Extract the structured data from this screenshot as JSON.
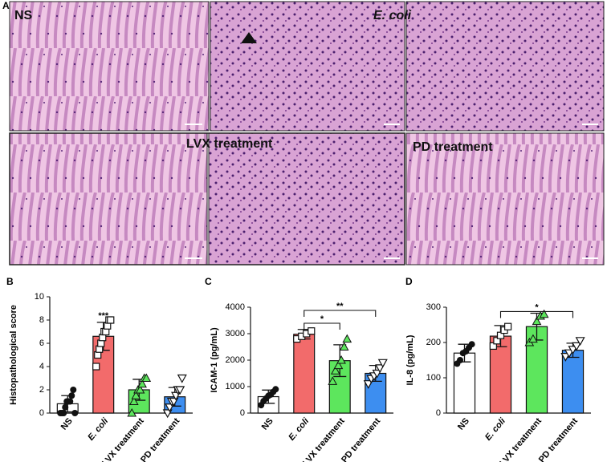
{
  "histology": {
    "label": "A",
    "panels": [
      "NS",
      "E. coli",
      "LVX treatment",
      "PD treatment"
    ]
  },
  "chart_data": [
    {
      "type": "bar",
      "panel": "B",
      "ylabel": "Histopathological score",
      "categories": [
        "NS",
        "E. coli",
        "LVX treatment",
        "PD treatment"
      ],
      "values": [
        0.8,
        6.6,
        2.0,
        1.4
      ],
      "errors": [
        0.7,
        1.2,
        0.9,
        0.8
      ],
      "points": [
        [
          0,
          0,
          0,
          0.5,
          1,
          1,
          1,
          1.5,
          2,
          0
        ],
        [
          4,
          5,
          5.5,
          6,
          6.5,
          7,
          7,
          7.5,
          8,
          8
        ],
        [
          0,
          1,
          1.5,
          2,
          2,
          2.5,
          3,
          3
        ],
        [
          0,
          0.5,
          1,
          1,
          1.5,
          2,
          2,
          3
        ]
      ],
      "colors": [
        "#ffffff",
        "#f26b6b",
        "#5de65d",
        "#3d8ef0"
      ],
      "markers": [
        "circle",
        "square",
        "triangle",
        "triangle-down"
      ],
      "ylim": [
        0,
        10
      ],
      "yticks": [
        0,
        2,
        4,
        6,
        8,
        10
      ],
      "annotations": [
        {
          "text": "***",
          "from": 1,
          "to": 1
        }
      ]
    },
    {
      "type": "bar",
      "panel": "C",
      "ylabel": "ICAM-1 (pg/mL)",
      "categories": [
        "NS",
        "E. coli",
        "LVX treatment",
        "PD treatment"
      ],
      "values": [
        620,
        2980,
        1980,
        1500
      ],
      "errors": [
        250,
        180,
        600,
        300
      ],
      "points": [
        [
          300,
          450,
          550,
          650,
          700,
          800,
          900
        ],
        [
          2800,
          2900,
          3000,
          3100
        ],
        [
          1200,
          1600,
          1800,
          2000,
          2500,
          2800
        ],
        [
          1100,
          1300,
          1400,
          1500,
          1700,
          1900
        ]
      ],
      "colors": [
        "#ffffff",
        "#f26b6b",
        "#5de65d",
        "#3d8ef0"
      ],
      "markers": [
        "circle",
        "square",
        "triangle",
        "triangle-down"
      ],
      "ylim": [
        0,
        4000
      ],
      "yticks": [
        0,
        1000,
        2000,
        3000,
        4000
      ],
      "annotations": [
        {
          "text": "*",
          "from": 1,
          "to": 2
        },
        {
          "text": "**",
          "from": 1,
          "to": 3
        }
      ]
    },
    {
      "type": "bar",
      "panel": "D",
      "ylabel": "IL-8 (pg/mL)",
      "categories": [
        "NS",
        "E. coli",
        "LVX treatment",
        "PD treatment"
      ],
      "values": [
        170,
        218,
        245,
        178
      ],
      "errors": [
        25,
        30,
        38,
        20
      ],
      "points": [
        [
          140,
          150,
          170,
          175,
          185,
          195
        ],
        [
          190,
          205,
          220,
          235,
          245
        ],
        [
          200,
          210,
          260,
          275,
          280
        ],
        [
          160,
          170,
          180,
          190,
          205
        ]
      ],
      "colors": [
        "#ffffff",
        "#f26b6b",
        "#5de65d",
        "#3d8ef0"
      ],
      "markers": [
        "circle",
        "square",
        "triangle",
        "triangle-down"
      ],
      "ylim": [
        0,
        300
      ],
      "yticks": [
        0,
        100,
        200,
        300
      ],
      "annotations": [
        {
          "text": "*",
          "from": 1,
          "to": 3
        }
      ]
    }
  ]
}
